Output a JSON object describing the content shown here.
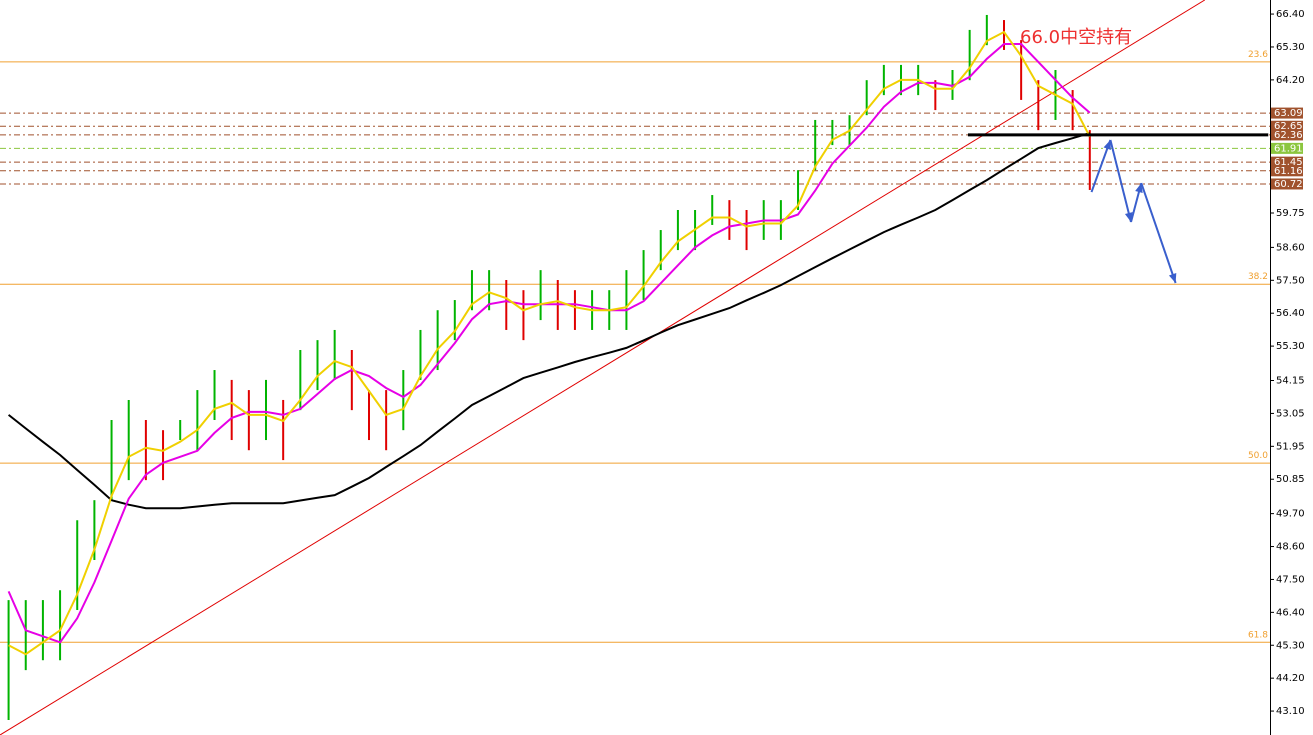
{
  "chart_data": {
    "type": "price-bars",
    "annotation": "66.0中空持有",
    "xlim": [
      -0.5,
      73.5
    ],
    "ylim": [
      42.3,
      66.87
    ],
    "yticks": [
      {
        "value": 66.4,
        "label": "66.40"
      },
      {
        "value": 65.3,
        "label": "65.30"
      },
      {
        "value": 64.2,
        "label": "64.20"
      },
      {
        "value": 59.75,
        "label": "59.75"
      },
      {
        "value": 58.6,
        "label": "58.60"
      },
      {
        "value": 57.5,
        "label": "57.50"
      },
      {
        "value": 56.4,
        "label": "56.40"
      },
      {
        "value": 55.3,
        "label": "55.30"
      },
      {
        "value": 54.15,
        "label": "54.15"
      },
      {
        "value": 53.05,
        "label": "53.05"
      },
      {
        "value": 51.95,
        "label": "51.95"
      },
      {
        "value": 50.85,
        "label": "50.85"
      },
      {
        "value": 49.7,
        "label": "49.70"
      },
      {
        "value": 48.6,
        "label": "48.60"
      },
      {
        "value": 47.5,
        "label": "47.50"
      },
      {
        "value": 46.4,
        "label": "46.40"
      },
      {
        "value": 45.3,
        "label": "45.30"
      },
      {
        "value": 44.2,
        "label": "44.20"
      },
      {
        "value": 43.1,
        "label": "43.10"
      }
    ],
    "up_color": "#00b400",
    "down_color": "#e00000",
    "high": [
      46.81,
      46.81,
      46.81,
      47.14,
      49.48,
      50.15,
      52.83,
      53.5,
      52.83,
      52.49,
      52.83,
      53.83,
      54.5,
      54.17,
      53.83,
      54.17,
      53.5,
      55.17,
      55.5,
      55.84,
      55.17,
      53.83,
      53.83,
      54.5,
      55.84,
      56.5,
      56.84,
      57.84,
      57.84,
      57.51,
      57.17,
      57.84,
      57.51,
      57.17,
      57.17,
      57.17,
      57.84,
      58.51,
      59.18,
      59.85,
      59.85,
      60.35,
      60.18,
      59.85,
      60.18,
      60.18,
      61.18,
      62.86,
      62.86,
      63.02,
      64.19,
      64.7,
      64.7,
      64.7,
      64.19,
      64.53,
      65.87,
      66.37,
      66.2,
      65.53,
      64.19,
      64.53,
      63.86,
      62.52
    ],
    "low": [
      42.8,
      44.47,
      44.8,
      44.8,
      46.48,
      48.15,
      50.15,
      50.82,
      50.82,
      50.82,
      52.16,
      51.82,
      52.83,
      52.16,
      51.82,
      52.16,
      51.49,
      53.16,
      53.83,
      54.17,
      53.16,
      52.16,
      51.82,
      52.49,
      54.17,
      54.5,
      55.5,
      56.5,
      56.5,
      55.84,
      55.5,
      56.17,
      55.84,
      55.84,
      55.84,
      55.84,
      55.84,
      56.84,
      57.84,
      58.51,
      58.51,
      59.35,
      58.85,
      58.51,
      58.85,
      58.85,
      59.85,
      61.18,
      62.02,
      62.02,
      63.02,
      63.69,
      63.69,
      63.69,
      63.19,
      63.53,
      64.19,
      65.36,
      65.2,
      63.53,
      62.52,
      62.86,
      62.52,
      60.52
    ],
    "series": [
      {
        "color": "#000000",
        "values": [
          53.0,
          52.55,
          52.1,
          51.66,
          51.16,
          50.66,
          50.15,
          50.0,
          49.88,
          49.88,
          49.88,
          49.94,
          50.0,
          50.05,
          50.05,
          50.05,
          50.05,
          50.14,
          50.23,
          50.32,
          50.6,
          50.89,
          51.26,
          51.62,
          51.99,
          52.44,
          52.88,
          53.33,
          53.63,
          53.93,
          54.23,
          54.41,
          54.59,
          54.77,
          54.93,
          55.08,
          55.24,
          55.49,
          55.75,
          56.0,
          56.19,
          56.38,
          56.57,
          56.83,
          57.08,
          57.34,
          57.64,
          57.94,
          58.24,
          58.53,
          58.82,
          59.11,
          59.36,
          59.6,
          59.85,
          60.18,
          60.52,
          60.85,
          61.21,
          61.56,
          61.92,
          62.09,
          62.25,
          62.42
        ]
      },
      {
        "color": "#e600e6",
        "values": [
          47.1,
          45.8,
          45.6,
          45.4,
          46.2,
          47.4,
          48.8,
          50.2,
          51.0,
          51.4,
          51.6,
          51.8,
          52.4,
          52.9,
          53.1,
          53.1,
          53.0,
          53.2,
          53.7,
          54.2,
          54.5,
          54.3,
          53.9,
          53.6,
          54.0,
          54.7,
          55.4,
          56.2,
          56.7,
          56.8,
          56.7,
          56.7,
          56.7,
          56.7,
          56.6,
          56.5,
          56.5,
          56.8,
          57.4,
          58.0,
          58.6,
          59.0,
          59.3,
          59.4,
          59.5,
          59.5,
          59.7,
          60.5,
          61.4,
          62.0,
          62.6,
          63.3,
          63.8,
          64.1,
          64.1,
          64.0,
          64.3,
          64.9,
          65.4,
          65.4,
          64.8,
          64.2,
          63.6,
          63.1
        ]
      },
      {
        "color": "#f0d000",
        "values": [
          45.3,
          45.0,
          45.4,
          45.8,
          47.0,
          48.5,
          50.3,
          51.6,
          51.9,
          51.8,
          52.1,
          52.5,
          53.2,
          53.4,
          53.0,
          53.0,
          52.8,
          53.5,
          54.3,
          54.8,
          54.6,
          53.8,
          53.0,
          53.2,
          54.3,
          55.2,
          55.8,
          56.7,
          57.1,
          56.9,
          56.5,
          56.7,
          56.8,
          56.6,
          56.5,
          56.5,
          56.6,
          57.3,
          58.1,
          58.8,
          59.2,
          59.6,
          59.6,
          59.3,
          59.4,
          59.4,
          60.0,
          61.3,
          62.2,
          62.5,
          63.2,
          63.9,
          64.2,
          64.2,
          63.9,
          63.9,
          64.6,
          65.5,
          65.8,
          65.0,
          64.0,
          63.7,
          63.4,
          62.3
        ]
      }
    ],
    "fib_levels": [
      {
        "ratio": "23.6",
        "price": 64.8,
        "color": "#f0a030"
      },
      {
        "ratio": "38.2",
        "price": 57.37,
        "color": "#f0a030"
      },
      {
        "ratio": "50.0",
        "price": 51.39,
        "color": "#f0a030"
      },
      {
        "ratio": "61.8",
        "price": 45.4,
        "color": "#f0a030"
      }
    ],
    "price_levels": [
      {
        "value": 63.09,
        "color": "#a0522d"
      },
      {
        "value": 62.65,
        "color": "#a0522d"
      },
      {
        "value": 62.36,
        "color": "#a0522d"
      },
      {
        "value": 61.91,
        "color": "#8cc63f"
      },
      {
        "value": 61.45,
        "color": "#a0522d"
      },
      {
        "value": 61.16,
        "color": "#a0522d"
      },
      {
        "value": 60.72,
        "color": "#a0522d"
      }
    ],
    "support_line": {
      "value": 62.36,
      "x": [
        55.9,
        73.4
      ],
      "color": "#000000"
    },
    "trendline": {
      "x": [
        -0.5,
        69.7
      ],
      "y": [
        42.3,
        66.87
      ],
      "color": "#e00000"
    },
    "forecast": {
      "x": [
        63.1,
        64.2,
        65.4,
        66.0,
        68.0
      ],
      "y": [
        60.45,
        62.19,
        59.45,
        60.75,
        57.41
      ],
      "color": "#3a5fcd"
    }
  }
}
